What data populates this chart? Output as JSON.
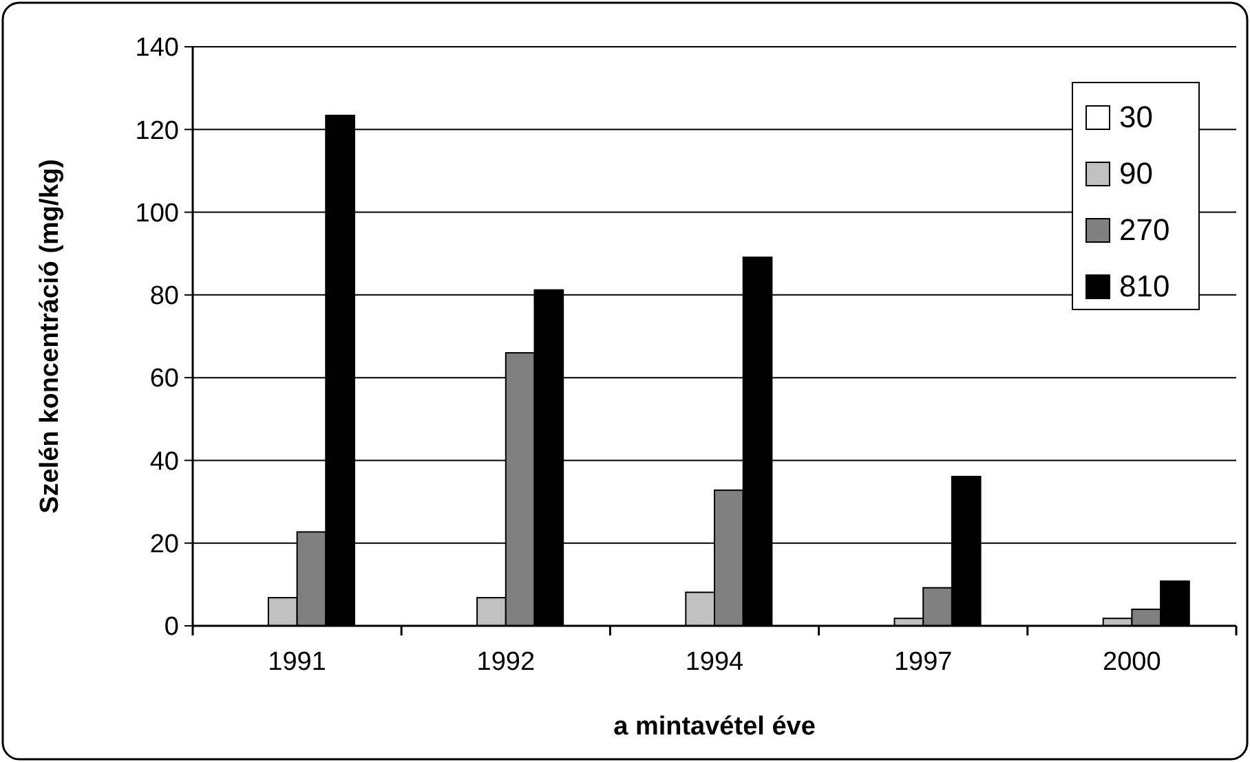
{
  "chart_data": {
    "type": "bar",
    "xlabel": "a mintavétel éve",
    "ylabel": "Szelén koncentráció (mg/kg)",
    "categories": [
      "1991",
      "1992",
      "1994",
      "1997",
      "2000"
    ],
    "series": [
      {
        "name": "30",
        "color": "#ffffff",
        "values": [
          0,
          0,
          0,
          0,
          0
        ]
      },
      {
        "name": "90",
        "color": "#c0c0c0",
        "values": [
          6.8,
          6.8,
          8.1,
          1.8,
          1.8
        ]
      },
      {
        "name": "270",
        "color": "#808080",
        "values": [
          22.7,
          66,
          32.8,
          9.2,
          4
        ]
      },
      {
        "name": "810",
        "color": "#000000",
        "values": [
          123.4,
          81.2,
          89.1,
          36.1,
          10.8
        ]
      }
    ],
    "ylim": [
      0,
      140
    ],
    "yticks": [
      0,
      20,
      40,
      60,
      80,
      100,
      120,
      140
    ],
    "grid": "y",
    "legend": "top right"
  }
}
